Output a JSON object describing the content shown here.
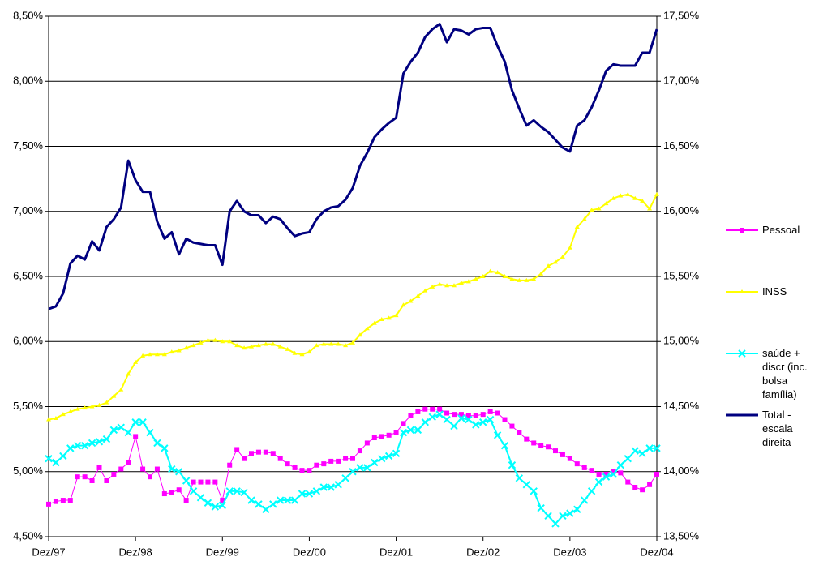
{
  "chart_data": {
    "type": "line",
    "categories": [
      "Dez/97",
      null,
      null,
      null,
      null,
      null,
      null,
      null,
      null,
      null,
      null,
      null,
      "Dez/98",
      null,
      null,
      null,
      null,
      null,
      null,
      null,
      null,
      null,
      null,
      null,
      "Dez/99",
      null,
      null,
      null,
      null,
      null,
      null,
      null,
      null,
      null,
      null,
      null,
      "Dez/00",
      null,
      null,
      null,
      null,
      null,
      null,
      null,
      null,
      null,
      null,
      null,
      "Dez/01",
      null,
      null,
      null,
      null,
      null,
      null,
      null,
      null,
      null,
      null,
      null,
      "Dez/02",
      null,
      null,
      null,
      null,
      null,
      null,
      null,
      null,
      null,
      null,
      null,
      "Dez/03",
      null,
      null,
      null,
      null,
      null,
      null,
      null,
      null,
      null,
      null,
      null,
      "Dez/04"
    ],
    "ylim": [
      4.5,
      8.5
    ],
    "yticks": [
      {
        "value": 4.5,
        "label": "4,50%"
      },
      {
        "value": 5.0,
        "label": "5,00%"
      },
      {
        "value": 5.5,
        "label": "5,50%"
      },
      {
        "value": 6.0,
        "label": "6,00%"
      },
      {
        "value": 6.5,
        "label": "6,50%"
      },
      {
        "value": 7.0,
        "label": "7,00%"
      },
      {
        "value": 7.5,
        "label": "7,50%"
      },
      {
        "value": 8.0,
        "label": "8,00%"
      },
      {
        "value": 8.5,
        "label": "8,50%"
      }
    ],
    "y2lim": [
      13.5,
      17.5
    ],
    "y2ticks": [
      {
        "value": 13.5,
        "label": "13,50%"
      },
      {
        "value": 14.0,
        "label": "14,00%"
      },
      {
        "value": 14.5,
        "label": "14,50%"
      },
      {
        "value": 15.0,
        "label": "15,00%"
      },
      {
        "value": 15.5,
        "label": "15,50%"
      },
      {
        "value": 16.0,
        "label": "16,00%"
      },
      {
        "value": 16.5,
        "label": "16,50%"
      },
      {
        "value": 17.0,
        "label": "17,00%"
      },
      {
        "value": 17.5,
        "label": "17,50%"
      }
    ],
    "grid": true,
    "legend": "right",
    "series": [
      {
        "name": "Pessoal",
        "color": "#ff00ff",
        "marker": "square",
        "values": [
          4.75,
          4.77,
          4.78,
          4.78,
          4.96,
          4.96,
          4.93,
          5.03,
          4.93,
          4.98,
          5.02,
          5.07,
          5.27,
          5.02,
          4.96,
          5.02,
          4.83,
          4.84,
          4.86,
          4.78,
          4.92,
          4.92,
          4.92,
          4.92,
          4.78,
          5.05,
          5.17,
          5.1,
          5.14,
          5.15,
          5.15,
          5.14,
          5.1,
          5.06,
          5.03,
          5.01,
          5.01,
          5.05,
          5.06,
          5.08,
          5.08,
          5.1,
          5.1,
          5.16,
          5.22,
          5.26,
          5.27,
          5.28,
          5.3,
          5.37,
          5.43,
          5.46,
          5.48,
          5.48,
          5.48,
          5.45,
          5.44,
          5.44,
          5.43,
          5.43,
          5.44,
          5.46,
          5.45,
          5.4,
          5.35,
          5.3,
          5.25,
          5.22,
          5.2,
          5.19,
          5.16,
          5.13,
          5.1,
          5.06,
          5.03,
          5.01,
          4.98,
          4.98,
          5.0,
          4.99,
          4.92,
          4.88,
          4.86,
          4.9,
          4.98
        ]
      },
      {
        "name": "INSS",
        "color": "#ffff00",
        "marker": "triangle",
        "values": [
          5.4,
          5.41,
          5.44,
          5.46,
          5.48,
          5.49,
          5.5,
          5.51,
          5.53,
          5.58,
          5.63,
          5.75,
          5.84,
          5.89,
          5.9,
          5.9,
          5.9,
          5.92,
          5.93,
          5.95,
          5.97,
          5.99,
          6.01,
          6.01,
          6.0,
          6.0,
          5.97,
          5.95,
          5.96,
          5.97,
          5.98,
          5.98,
          5.96,
          5.94,
          5.91,
          5.9,
          5.92,
          5.97,
          5.98,
          5.98,
          5.98,
          5.97,
          5.99,
          6.05,
          6.1,
          6.14,
          6.17,
          6.18,
          6.2,
          6.28,
          6.31,
          6.35,
          6.39,
          6.42,
          6.44,
          6.43,
          6.43,
          6.45,
          6.46,
          6.48,
          6.5,
          6.54,
          6.53,
          6.5,
          6.48,
          6.47,
          6.47,
          6.48,
          6.52,
          6.58,
          6.61,
          6.65,
          6.72,
          6.88,
          6.94,
          7.01,
          7.02,
          7.06,
          7.1,
          7.12,
          7.13,
          7.1,
          7.08,
          7.02,
          7.13
        ]
      },
      {
        "name": "saúde + discr (inc. bolsa família)",
        "color": "#00ffff",
        "marker": "x",
        "values": [
          5.1,
          5.07,
          5.12,
          5.18,
          5.2,
          5.2,
          5.22,
          5.23,
          5.25,
          5.32,
          5.34,
          5.3,
          5.38,
          5.38,
          5.3,
          5.22,
          5.18,
          5.02,
          5.0,
          4.93,
          4.85,
          4.8,
          4.76,
          4.73,
          4.74,
          4.85,
          4.85,
          4.84,
          4.78,
          4.75,
          4.71,
          4.75,
          4.78,
          4.78,
          4.78,
          4.83,
          4.83,
          4.85,
          4.88,
          4.88,
          4.9,
          4.95,
          5.0,
          5.03,
          5.03,
          5.07,
          5.1,
          5.12,
          5.14,
          5.3,
          5.32,
          5.32,
          5.38,
          5.42,
          5.44,
          5.4,
          5.35,
          5.41,
          5.4,
          5.36,
          5.38,
          5.4,
          5.28,
          5.2,
          5.05,
          4.95,
          4.9,
          4.85,
          4.72,
          4.66,
          4.6,
          4.66,
          4.68,
          4.71,
          4.78,
          4.85,
          4.92,
          4.96,
          4.98,
          5.05,
          5.1,
          5.16,
          5.14,
          5.18,
          5.18
        ]
      },
      {
        "name": "Total - escala direita",
        "color": "#000080",
        "axis": "y2",
        "values": [
          15.25,
          15.27,
          15.37,
          15.6,
          15.66,
          15.63,
          15.77,
          15.7,
          15.88,
          15.94,
          16.03,
          16.39,
          16.24,
          16.15,
          16.15,
          15.92,
          15.79,
          15.84,
          15.67,
          15.79,
          15.76,
          15.75,
          15.74,
          15.74,
          15.59,
          16.0,
          16.08,
          16.0,
          15.97,
          15.97,
          15.91,
          15.96,
          15.94,
          15.87,
          15.81,
          15.83,
          15.84,
          15.94,
          16.0,
          16.03,
          16.04,
          16.09,
          16.18,
          16.35,
          16.45,
          16.57,
          16.63,
          16.68,
          16.72,
          17.06,
          17.15,
          17.22,
          17.34,
          17.4,
          17.44,
          17.3,
          17.4,
          17.39,
          17.36,
          17.4,
          17.41,
          17.41,
          17.27,
          17.15,
          16.93,
          16.79,
          16.66,
          16.7,
          16.65,
          16.61,
          16.55,
          16.49,
          16.46,
          16.66,
          16.7,
          16.8,
          16.93,
          17.08,
          17.13,
          17.12,
          17.12,
          17.12,
          17.22,
          17.22,
          17.4
        ]
      }
    ]
  }
}
